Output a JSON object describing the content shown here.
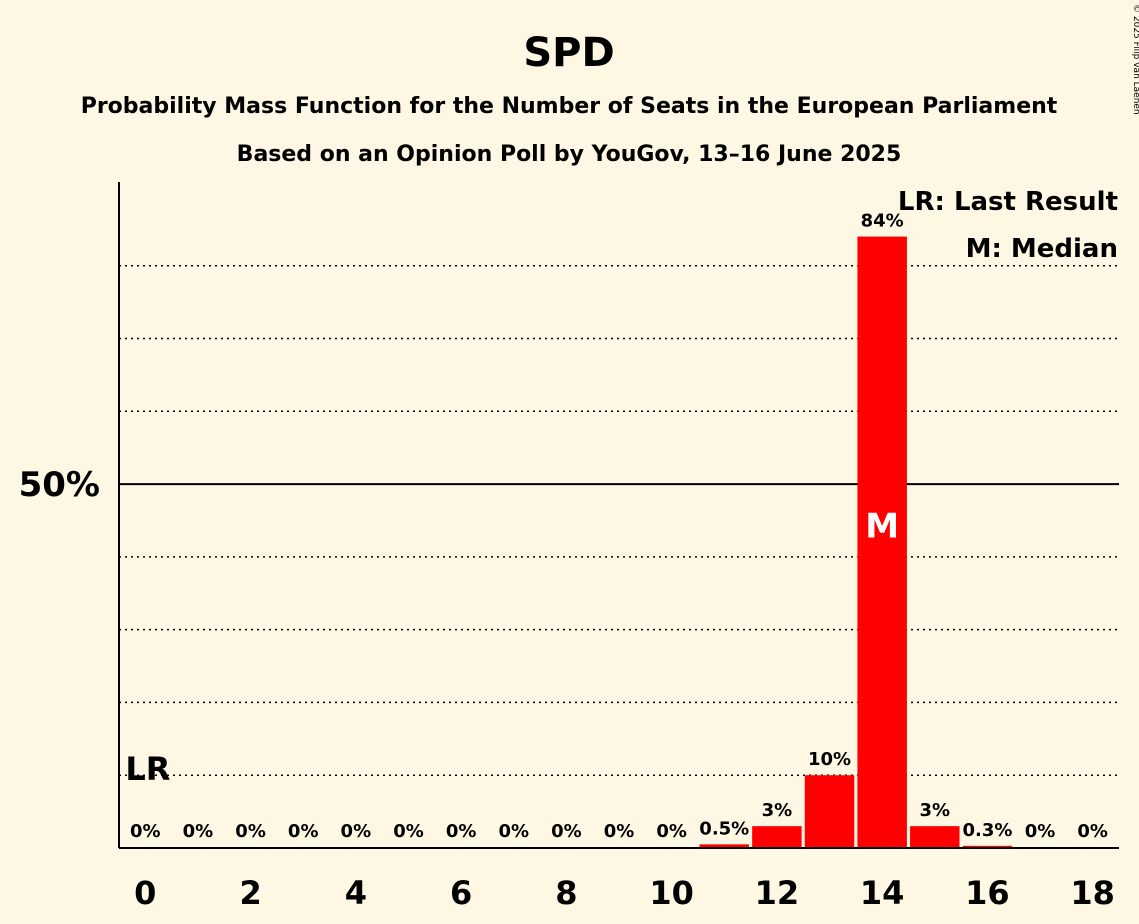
{
  "copyright": "© 2025 Filip van Laenen",
  "chart_data": {
    "type": "bar",
    "title": "SPD",
    "subtitle": "Probability Mass Function for the Number of Seats in the European Parliament",
    "subtitle2": "Based on an Opinion Poll by YouGov, 13–16 June 2025",
    "categories": [
      0,
      1,
      2,
      3,
      4,
      5,
      6,
      7,
      8,
      9,
      10,
      11,
      12,
      13,
      14,
      15,
      16,
      17,
      18
    ],
    "values": [
      0,
      0,
      0,
      0,
      0,
      0,
      0,
      0,
      0,
      0,
      0,
      0.5,
      3,
      10,
      84,
      3,
      0.3,
      0,
      0
    ],
    "value_labels": [
      "0%",
      "0%",
      "0%",
      "0%",
      "0%",
      "0%",
      "0%",
      "0%",
      "0%",
      "0%",
      "0%",
      "0.5%",
      "3%",
      "10%",
      "84%",
      "3%",
      "0.3%",
      "0%",
      "0%"
    ],
    "x_tick_labels": [
      "0",
      "2",
      "4",
      "6",
      "8",
      "10",
      "12",
      "14",
      "16",
      "18"
    ],
    "x_tick_values": [
      0,
      2,
      4,
      6,
      8,
      10,
      12,
      14,
      16,
      18
    ],
    "y_tick_label": "50%",
    "y_tick_value": 50,
    "ylim": [
      0,
      91.5
    ],
    "gridlines": [
      10,
      20,
      30,
      40,
      60,
      70,
      80
    ],
    "bar_color": "#ff0000",
    "last_result": {
      "seat": 0,
      "label": "LR"
    },
    "median": {
      "seat": 14,
      "label": "M"
    },
    "legend": [
      "LR: Last Result",
      "M: Median"
    ],
    "legend_position": "top-right"
  }
}
